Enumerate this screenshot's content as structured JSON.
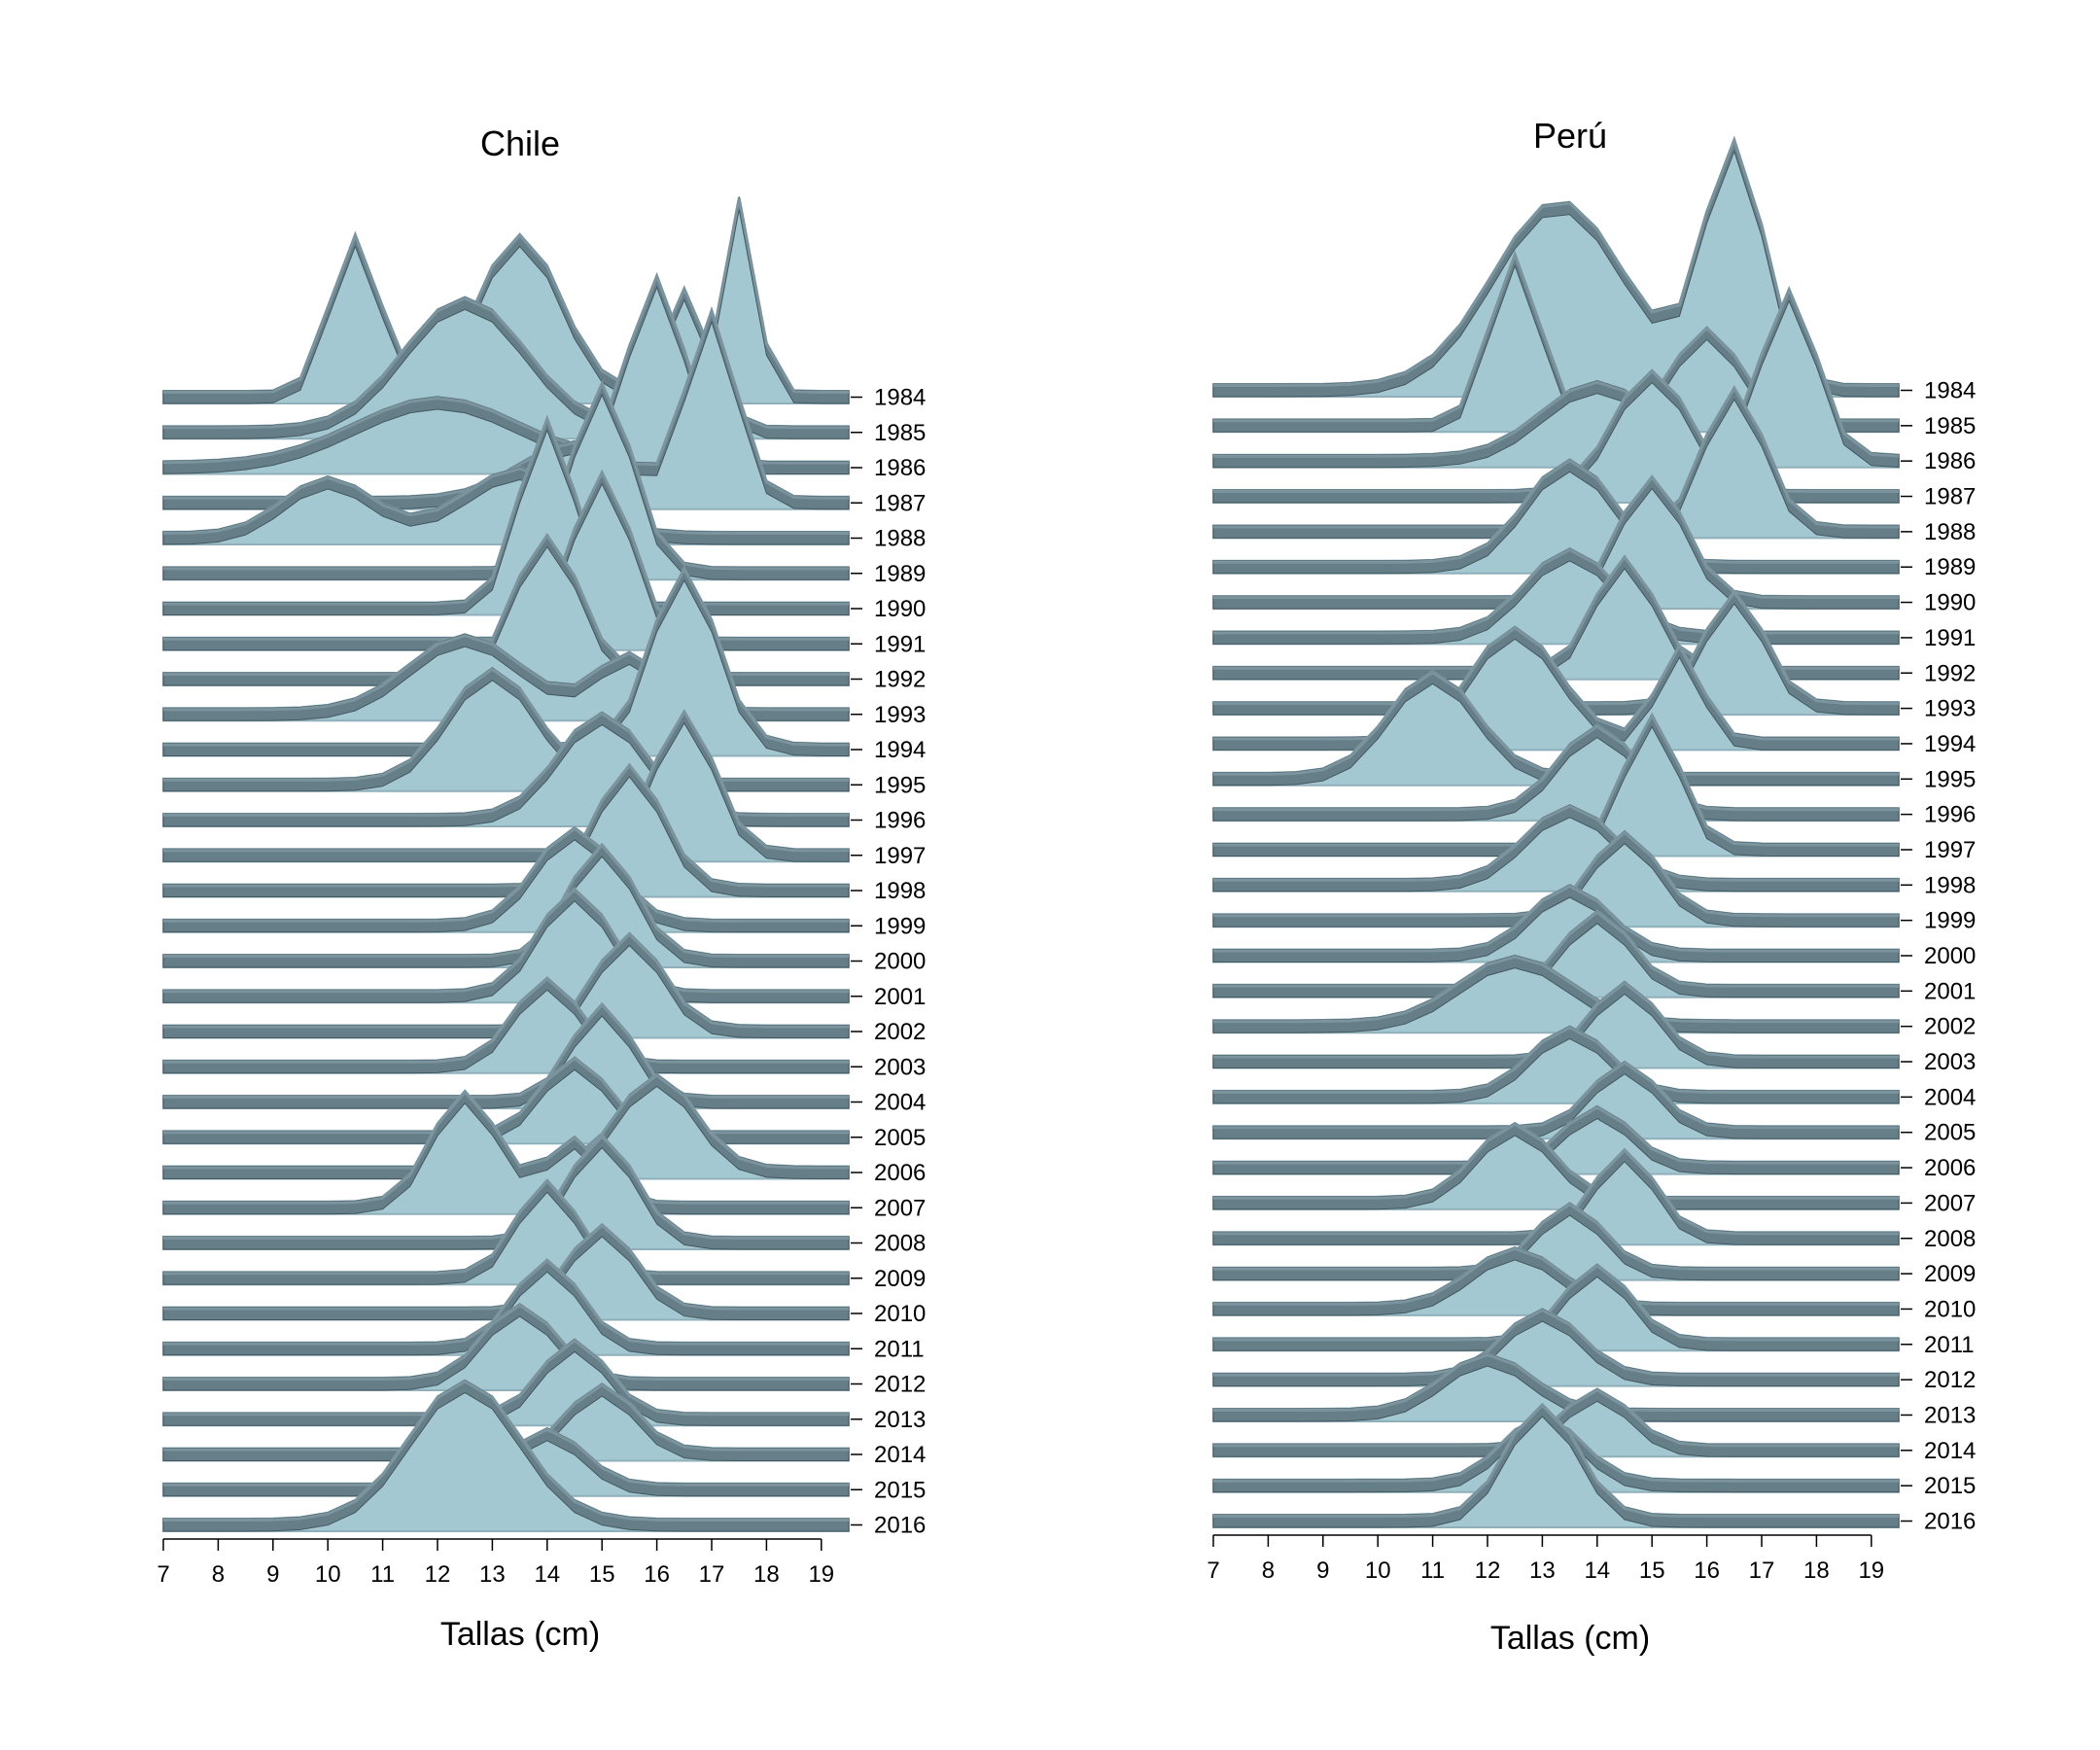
{
  "chart_data": [
    {
      "type": "ridgeline",
      "title": "Chile",
      "xlabel": "Tallas (cm)",
      "x_ticks": [
        "7",
        "8",
        "9",
        "10",
        "11",
        "12",
        "13",
        "14",
        "15",
        "16",
        "17",
        "18",
        "19"
      ],
      "xlim": [
        7,
        19.5
      ],
      "year_labels": [
        "1984",
        "1985",
        "1986",
        "1987",
        "1988",
        "1989",
        "1990",
        "1991",
        "1992",
        "1993",
        "1994",
        "1995",
        "1996",
        "1997",
        "1998",
        "1999",
        "2000",
        "2001",
        "2002",
        "2003",
        "2004",
        "2005",
        "2006",
        "2007",
        "2008",
        "2009",
        "2010",
        "2011",
        "2012",
        "2013",
        "2014",
        "2015",
        "2016"
      ],
      "peaks": [
        {
          "year": 1984,
          "components": [
            [
              10.5,
              0.85,
              0.45
            ],
            [
              13.5,
              0.85,
              0.75
            ],
            [
              17.5,
              1.05,
              0.3
            ]
          ]
        },
        {
          "year": 1985,
          "components": [
            [
              12.5,
              0.7,
              1.1
            ],
            [
              16.5,
              0.75,
              0.45
            ]
          ]
        },
        {
          "year": 1986,
          "components": [
            [
              16.0,
              1.0,
              0.5
            ],
            [
              12.0,
              0.35,
              1.5
            ]
          ]
        },
        {
          "year": 1987,
          "components": [
            [
              17.0,
              1.0,
              0.45
            ],
            [
              14.5,
              0.3,
              1.0
            ]
          ]
        },
        {
          "year": 1988,
          "components": [
            [
              10.0,
              0.3,
              0.8
            ],
            [
              13.5,
              0.35,
              1.0
            ]
          ]
        },
        {
          "year": 1989,
          "components": [
            [
              15.0,
              1.0,
              0.55
            ]
          ]
        },
        {
          "year": 1990,
          "components": [
            [
              14.0,
              1.0,
              0.5
            ]
          ]
        },
        {
          "year": 1991,
          "components": [
            [
              15.0,
              0.9,
              0.55
            ]
          ]
        },
        {
          "year": 1992,
          "components": [
            [
              14.0,
              0.75,
              0.6
            ]
          ]
        },
        {
          "year": 1993,
          "components": [
            [
              12.5,
              0.4,
              1.0
            ],
            [
              15.5,
              0.3,
              0.6
            ]
          ]
        },
        {
          "year": 1994,
          "components": [
            [
              16.5,
              0.95,
              0.6
            ]
          ]
        },
        {
          "year": 1995,
          "components": [
            [
              13.0,
              0.6,
              0.8
            ]
          ]
        },
        {
          "year": 1996,
          "components": [
            [
              15.0,
              0.55,
              0.8
            ]
          ]
        },
        {
          "year": 1997,
          "components": [
            [
              16.5,
              0.75,
              0.55
            ]
          ]
        },
        {
          "year": 1998,
          "components": [
            [
              15.5,
              0.65,
              0.6
            ]
          ]
        },
        {
          "year": 1999,
          "components": [
            [
              14.5,
              0.5,
              0.7
            ]
          ]
        },
        {
          "year": 2000,
          "components": [
            [
              15.0,
              0.6,
              0.6
            ]
          ]
        },
        {
          "year": 2001,
          "components": [
            [
              14.5,
              0.55,
              0.65
            ]
          ]
        },
        {
          "year": 2002,
          "components": [
            [
              15.5,
              0.5,
              0.6
            ]
          ]
        },
        {
          "year": 2003,
          "components": [
            [
              14.0,
              0.45,
              0.6
            ]
          ]
        },
        {
          "year": 2004,
          "components": [
            [
              15.0,
              0.5,
              0.55
            ]
          ]
        },
        {
          "year": 2005,
          "components": [
            [
              14.5,
              0.4,
              0.6
            ]
          ]
        },
        {
          "year": 2006,
          "components": [
            [
              16.0,
              0.5,
              0.7
            ]
          ]
        },
        {
          "year": 2007,
          "components": [
            [
              12.5,
              0.6,
              0.6
            ],
            [
              14.5,
              0.35,
              0.5
            ]
          ]
        },
        {
          "year": 2008,
          "components": [
            [
              15.0,
              0.55,
              0.6
            ]
          ]
        },
        {
          "year": 2009,
          "components": [
            [
              14.0,
              0.5,
              0.55
            ]
          ]
        },
        {
          "year": 2010,
          "components": [
            [
              15.0,
              0.45,
              0.6
            ]
          ]
        },
        {
          "year": 2011,
          "components": [
            [
              14.0,
              0.45,
              0.6
            ]
          ]
        },
        {
          "year": 2012,
          "components": [
            [
              13.5,
              0.4,
              0.65
            ]
          ]
        },
        {
          "year": 2013,
          "components": [
            [
              14.5,
              0.4,
              0.6
            ]
          ]
        },
        {
          "year": 2014,
          "components": [
            [
              15.0,
              0.35,
              0.6
            ]
          ]
        },
        {
          "year": 2015,
          "components": [
            [
              14.0,
              0.3,
              0.65
            ]
          ]
        },
        {
          "year": 2016,
          "components": [
            [
              12.5,
              0.75,
              1.0
            ]
          ]
        }
      ]
    },
    {
      "type": "ridgeline",
      "title": "Perú",
      "xlabel": "Tallas (cm)",
      "x_ticks": [
        "7",
        "8",
        "9",
        "10",
        "11",
        "12",
        "13",
        "14",
        "15",
        "16",
        "17",
        "18",
        "19"
      ],
      "xlim": [
        7,
        19.5
      ],
      "year_labels": [
        "1984",
        "1985",
        "1986",
        "1987",
        "1988",
        "1989",
        "1990",
        "1991",
        "1992",
        "1993",
        "1994",
        "1995",
        "1996",
        "1997",
        "1998",
        "1999",
        "2000",
        "2001",
        "2002",
        "2003",
        "2004",
        "2005",
        "2006",
        "2007",
        "2008",
        "2009",
        "2010",
        "2011",
        "2012",
        "2013",
        "2014",
        "2015",
        "2016"
      ],
      "peaks": [
        {
          "year": 1984,
          "components": [
            [
              13.3,
              1.0,
              1.2
            ],
            [
              16.5,
              1.3,
              0.55
            ]
          ]
        },
        {
          "year": 1985,
          "components": [
            [
              12.5,
              0.9,
              0.45
            ],
            [
              16.0,
              0.5,
              0.6
            ]
          ]
        },
        {
          "year": 1986,
          "components": [
            [
              17.5,
              0.9,
              0.5
            ],
            [
              14.0,
              0.4,
              1.0
            ]
          ]
        },
        {
          "year": 1987,
          "components": [
            [
              15.0,
              0.65,
              0.7
            ]
          ]
        },
        {
          "year": 1988,
          "components": [
            [
              16.5,
              0.75,
              0.55
            ]
          ]
        },
        {
          "year": 1989,
          "components": [
            [
              13.5,
              0.55,
              0.8
            ]
          ]
        },
        {
          "year": 1990,
          "components": [
            [
              15.0,
              0.65,
              0.6
            ]
          ]
        },
        {
          "year": 1991,
          "components": [
            [
              13.5,
              0.45,
              0.8
            ]
          ]
        },
        {
          "year": 1992,
          "components": [
            [
              14.5,
              0.6,
              0.55
            ]
          ]
        },
        {
          "year": 1993,
          "components": [
            [
              16.5,
              0.6,
              0.55
            ]
          ]
        },
        {
          "year": 1994,
          "components": [
            [
              12.5,
              0.6,
              0.8
            ],
            [
              15.5,
              0.5,
              0.4
            ]
          ]
        },
        {
          "year": 1995,
          "components": [
            [
              11.0,
              0.55,
              0.8
            ]
          ]
        },
        {
          "year": 1996,
          "components": [
            [
              14.0,
              0.45,
              0.7
            ]
          ]
        },
        {
          "year": 1997,
          "components": [
            [
              15.0,
              0.7,
              0.5
            ]
          ]
        },
        {
          "year": 1998,
          "components": [
            [
              13.5,
              0.4,
              0.8
            ]
          ]
        },
        {
          "year": 1999,
          "components": [
            [
              14.5,
              0.45,
              0.6
            ]
          ]
        },
        {
          "year": 2000,
          "components": [
            [
              13.5,
              0.35,
              0.7
            ]
          ]
        },
        {
          "year": 2001,
          "components": [
            [
              14.0,
              0.4,
              0.6
            ]
          ]
        },
        {
          "year": 2002,
          "components": [
            [
              12.5,
              0.35,
              1.0
            ]
          ]
        },
        {
          "year": 2003,
          "components": [
            [
              14.5,
              0.4,
              0.6
            ]
          ]
        },
        {
          "year": 2004,
          "components": [
            [
              13.5,
              0.35,
              0.7
            ]
          ]
        },
        {
          "year": 2005,
          "components": [
            [
              14.5,
              0.35,
              0.6
            ]
          ]
        },
        {
          "year": 2006,
          "components": [
            [
              14.0,
              0.3,
              0.6
            ]
          ]
        },
        {
          "year": 2007,
          "components": [
            [
              12.5,
              0.4,
              0.7
            ]
          ]
        },
        {
          "year": 2008,
          "components": [
            [
              14.5,
              0.45,
              0.55
            ]
          ]
        },
        {
          "year": 2009,
          "components": [
            [
              13.5,
              0.35,
              0.6
            ]
          ]
        },
        {
          "year": 2010,
          "components": [
            [
              12.5,
              0.3,
              0.8
            ]
          ]
        },
        {
          "year": 2011,
          "components": [
            [
              14.0,
              0.4,
              0.6
            ]
          ]
        },
        {
          "year": 2012,
          "components": [
            [
              13.0,
              0.35,
              0.7
            ]
          ]
        },
        {
          "year": 2013,
          "components": [
            [
              12.0,
              0.3,
              0.8
            ]
          ]
        },
        {
          "year": 2014,
          "components": [
            [
              14.0,
              0.3,
              0.6
            ]
          ]
        },
        {
          "year": 2015,
          "components": [
            [
              13.0,
              0.35,
              0.7
            ]
          ]
        },
        {
          "year": 2016,
          "components": [
            [
              13.0,
              0.6,
              0.65
            ]
          ]
        }
      ]
    }
  ],
  "colors": {
    "ridge_fill": "#a4c8d2",
    "ridge_stroke": "#8fb0ba",
    "ribbon_fill": "#667e88",
    "ribbon_top": "#7c949e",
    "ribbon_edge": "#44575f",
    "axis": "#000000"
  }
}
